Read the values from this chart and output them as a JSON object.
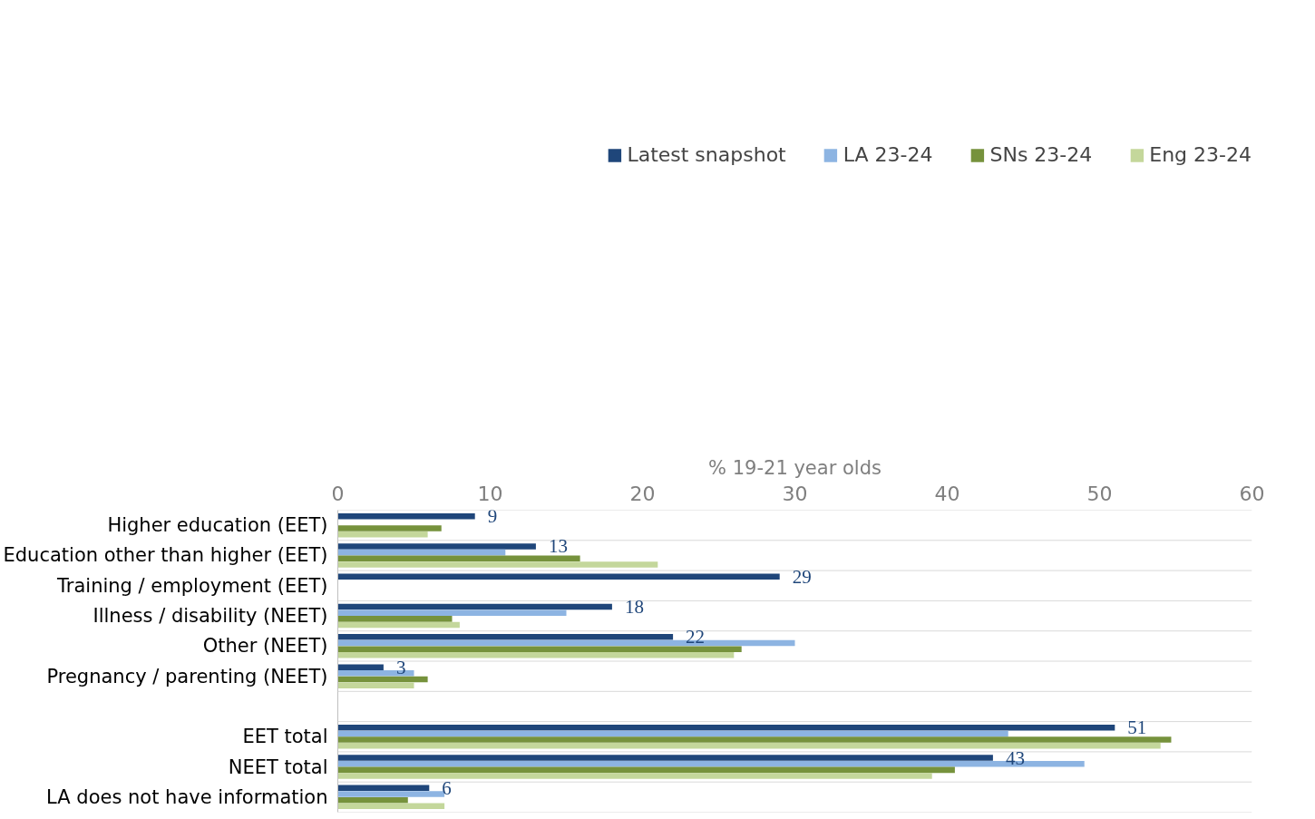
{
  "chart_data": {
    "type": "bar",
    "orientation": "horizontal",
    "xlabel": "% 19-21 year olds",
    "categories": [
      "Higher education (EET)",
      "Education other than higher (EET)",
      "Training / employment (EET)",
      "Illness / disability (NEET)",
      "Other (NEET)",
      "Pregnancy / parenting (NEET)",
      null,
      "EET total",
      "NEET total",
      "LA does not have information"
    ],
    "series": [
      {
        "name": "Latest snapshot",
        "color": "#1f467a",
        "values": [
          9,
          13,
          29,
          18,
          22,
          3,
          null,
          51,
          43,
          6
        ],
        "value_labels": [
          "9",
          "13",
          "29",
          "18",
          "22",
          "3",
          null,
          "51",
          "43",
          "6"
        ]
      },
      {
        "name": "LA 23-24",
        "color": "#8db4e2",
        "values": [
          null,
          11,
          null,
          15,
          30,
          5,
          null,
          44,
          49,
          7
        ]
      },
      {
        "name": "SNs 23-24",
        "color": "#76923c",
        "values": [
          6.8,
          15.9,
          null,
          7.5,
          26.5,
          5.9,
          null,
          54.7,
          40.5,
          4.6
        ]
      },
      {
        "name": "Eng 23-24",
        "color": "#c4d79b",
        "values": [
          5.9,
          21,
          null,
          8,
          26,
          5,
          null,
          54,
          39,
          7
        ]
      }
    ],
    "xlim": [
      0,
      60
    ],
    "xticks": [
      0,
      10,
      20,
      30,
      40,
      50,
      60
    ],
    "grid": "y",
    "legend": "top"
  }
}
